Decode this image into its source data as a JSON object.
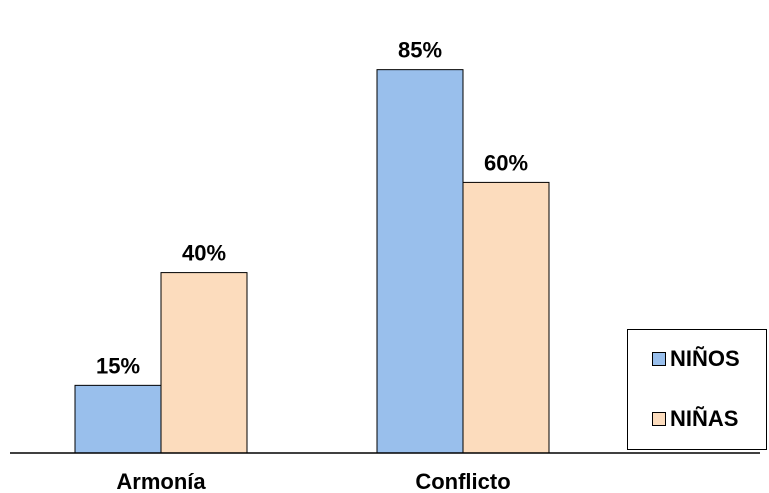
{
  "chart_data": {
    "type": "bar",
    "categories": [
      "Armonía",
      "Conflicto"
    ],
    "series": [
      {
        "name": "NIÑOS",
        "values": [
          15,
          85
        ],
        "labels": [
          "15%",
          "85%"
        ],
        "color": "#99bfec"
      },
      {
        "name": "NIÑAS",
        "values": [
          40,
          60
        ],
        "labels": [
          "40%",
          "60%"
        ],
        "color": "#fcdcbd"
      }
    ],
    "ylim": [
      0,
      100
    ],
    "grid": false,
    "legend_position": "right"
  }
}
